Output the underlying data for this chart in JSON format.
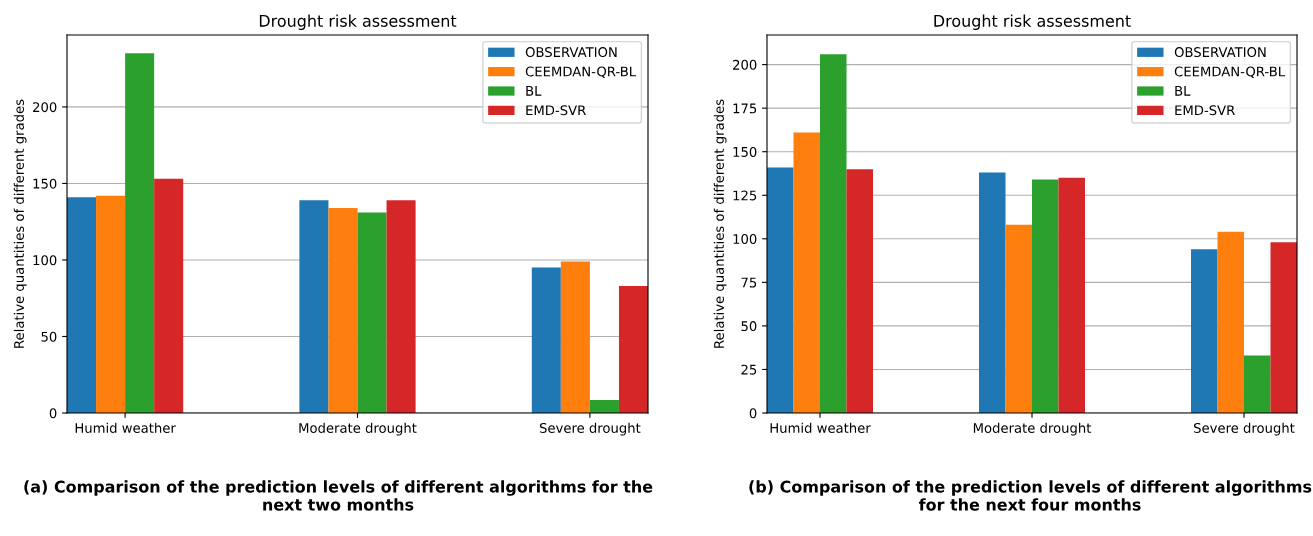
{
  "chart_data": [
    {
      "type": "bar",
      "title": "Drought risk assessment",
      "ylabel": "Relative quantities of different grades",
      "categories": [
        "Humid weather",
        "Moderate drought",
        "Severe drought"
      ],
      "series": [
        {
          "name": "OBSERVATION",
          "color": "#1f77b4",
          "values": [
            141,
            139,
            95
          ]
        },
        {
          "name": "CEEMDAN-QR-BL",
          "color": "#ff7f0e",
          "values": [
            142,
            134,
            99
          ]
        },
        {
          "name": "BL",
          "color": "#2ca02c",
          "values": [
            235,
            131,
            8.5
          ]
        },
        {
          "name": "EMD-SVR",
          "color": "#d62728",
          "values": [
            153,
            139,
            83
          ]
        }
      ],
      "ylim": [
        0,
        247
      ],
      "yticks": [
        0,
        50,
        100,
        150,
        200
      ],
      "grid": "y",
      "legend": "top right",
      "annotations": [
        "(a) Comparison of the prediction levels of different algorithms for the next two months"
      ]
    },
    {
      "type": "bar",
      "title": "Drought risk assessment",
      "ylabel": "Relative quantities of different grades",
      "categories": [
        "Humid weather",
        "Moderate drought",
        "Severe drought"
      ],
      "series": [
        {
          "name": "OBSERVATION",
          "color": "#1f77b4",
          "values": [
            141,
            138,
            94
          ]
        },
        {
          "name": "CEEMDAN-QR-BL",
          "color": "#ff7f0e",
          "values": [
            161,
            108,
            104
          ]
        },
        {
          "name": "BL",
          "color": "#2ca02c",
          "values": [
            206,
            134,
            33
          ]
        },
        {
          "name": "EMD-SVR",
          "color": "#d62728",
          "values": [
            140,
            135,
            98
          ]
        }
      ],
      "ylim": [
        0,
        217
      ],
      "yticks": [
        0,
        25,
        50,
        75,
        100,
        125,
        150,
        175,
        200
      ],
      "grid": "y",
      "legend": "top right",
      "annotations": [
        "(b) Comparison of the prediction levels of different algorithms for the next four months"
      ]
    }
  ]
}
